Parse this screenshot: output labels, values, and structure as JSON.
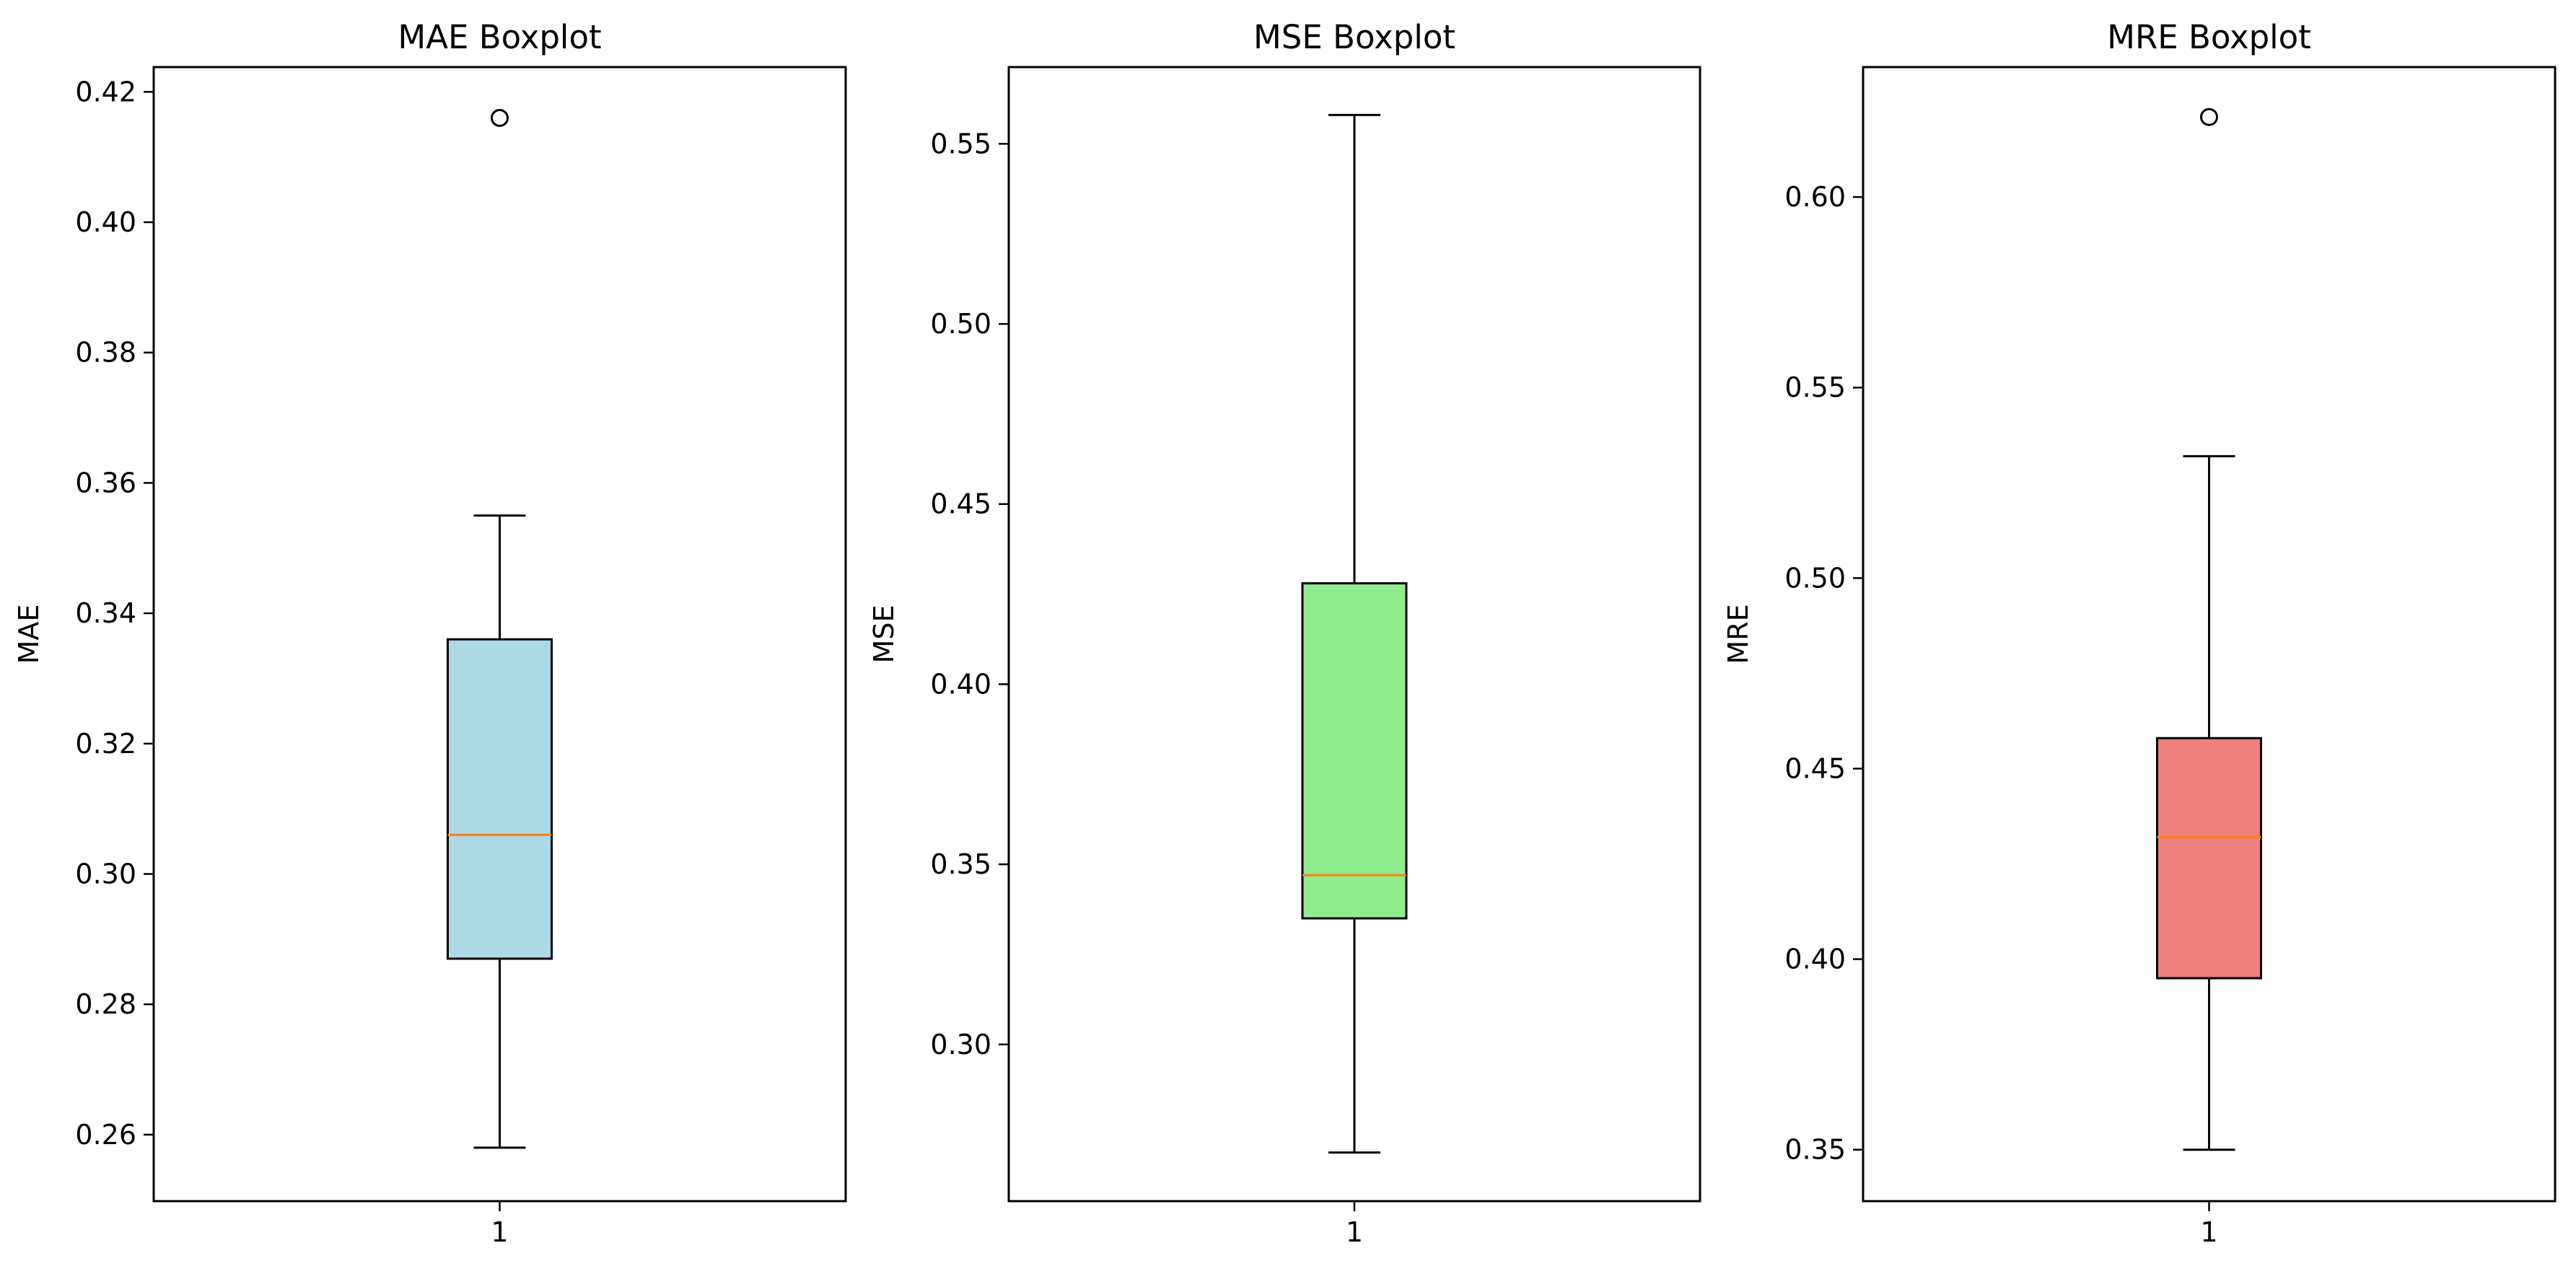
{
  "chart_data": [
    {
      "type": "box",
      "title": "MAE Boxplot",
      "ylabel": "MAE",
      "xlabel": "",
      "categories": [
        "1"
      ],
      "ylim": [
        0.2498,
        0.4238
      ],
      "yticks": [
        0.26,
        0.28,
        0.3,
        0.32,
        0.34,
        0.36,
        0.38,
        0.4,
        0.42
      ],
      "yticks_text": [
        "0.26",
        "0.28",
        "0.30",
        "0.32",
        "0.34",
        "0.36",
        "0.38",
        "0.40",
        "0.42"
      ],
      "box": {
        "whisker_low": 0.258,
        "q1": 0.287,
        "median": 0.306,
        "q3": 0.336,
        "whisker_high": 0.355,
        "outliers": [
          0.416
        ]
      },
      "fill": "#ADD8E6",
      "median_color": "#FF7F0E",
      "grid": false
    },
    {
      "type": "box",
      "title": "MSE Boxplot",
      "ylabel": "MSE",
      "xlabel": "",
      "categories": [
        "1"
      ],
      "ylim": [
        0.2565,
        0.5713
      ],
      "yticks": [
        0.3,
        0.35,
        0.4,
        0.45,
        0.5,
        0.55
      ],
      "yticks_text": [
        "0.30",
        "0.35",
        "0.40",
        "0.45",
        "0.50",
        "0.55"
      ],
      "box": {
        "whisker_low": 0.27,
        "q1": 0.335,
        "median": 0.347,
        "q3": 0.428,
        "whisker_high": 0.558,
        "outliers": []
      },
      "fill": "#90EE90",
      "median_color": "#FF7F0E",
      "grid": false
    },
    {
      "type": "box",
      "title": "MRE Boxplot",
      "ylabel": "MRE",
      "xlabel": "",
      "categories": [
        "1"
      ],
      "ylim": [
        0.3365,
        0.6341
      ],
      "yticks": [
        0.35,
        0.4,
        0.45,
        0.5,
        0.55,
        0.6
      ],
      "yticks_text": [
        "0.35",
        "0.40",
        "0.45",
        "0.50",
        "0.55",
        "0.60"
      ],
      "box": {
        "whisker_low": 0.35,
        "q1": 0.395,
        "median": 0.432,
        "q3": 0.458,
        "whisker_high": 0.532,
        "outliers": [
          0.621
        ]
      },
      "fill": "#F08080",
      "median_color": "#FF7F0E",
      "grid": false
    }
  ]
}
